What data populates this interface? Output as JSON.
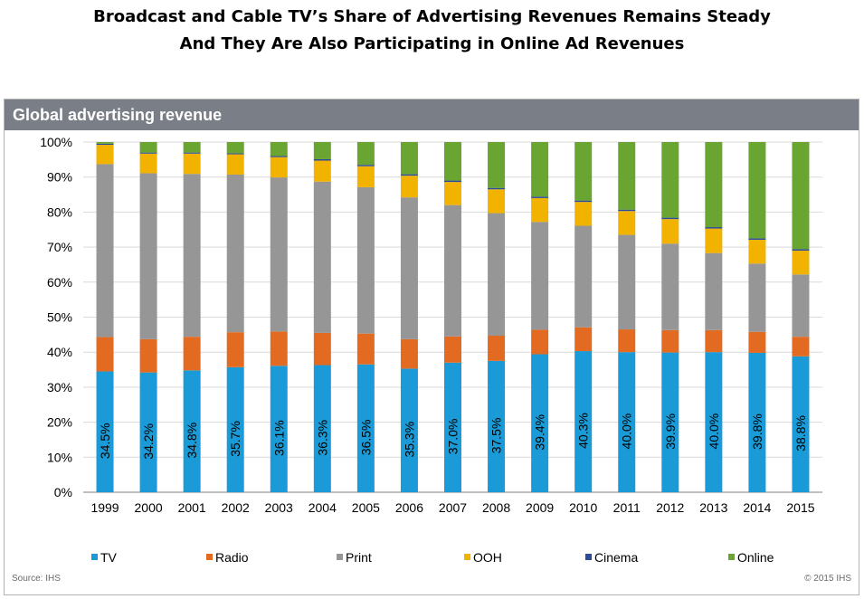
{
  "title_line1": "Broadcast and Cable TV’s Share of Advertising Revenues Remains Steady",
  "title_line2": "And They Are Also Participating in Online Ad Revenues",
  "panel_title": "Global advertising revenue",
  "source": "Source: IHS",
  "copyright": "© 2015 IHS",
  "colors": {
    "TV": "#1a9ad6",
    "Radio": "#e36b21",
    "Print": "#969696",
    "OOH": "#f2b200",
    "Cinema": "#2b4c9b",
    "Online": "#6aa431"
  },
  "chart_data": {
    "type": "bar",
    "stacked": true,
    "categories": [
      "1999",
      "2000",
      "2001",
      "2002",
      "2003",
      "2004",
      "2005",
      "2006",
      "2007",
      "2008",
      "2009",
      "2010",
      "2011",
      "2012",
      "2013",
      "2014",
      "2015"
    ],
    "ylim": [
      0,
      100
    ],
    "yticks": [
      "0%",
      "10%",
      "20%",
      "30%",
      "40%",
      "50%",
      "60%",
      "70%",
      "80%",
      "90%",
      "100%"
    ],
    "grid": true,
    "legend_position": "bottom",
    "series": [
      {
        "name": "TV",
        "values": [
          34.5,
          34.2,
          34.8,
          35.7,
          36.1,
          36.3,
          36.5,
          35.3,
          37.0,
          37.5,
          39.4,
          40.3,
          40.0,
          39.9,
          40.0,
          39.8,
          38.8
        ],
        "labels": [
          "34.5%",
          "34.2%",
          "34.8%",
          "35.7%",
          "36.1%",
          "36.3%",
          "36.5%",
          "35.3%",
          "37.0%",
          "37.5%",
          "39.4%",
          "40.3%",
          "40.0%",
          "39.9%",
          "40.0%",
          "39.8%",
          "38.8%"
        ]
      },
      {
        "name": "Radio",
        "values": [
          9.8,
          9.5,
          9.6,
          10.0,
          9.8,
          9.2,
          8.8,
          8.4,
          7.5,
          7.2,
          7.0,
          6.8,
          6.5,
          6.4,
          6.3,
          6.0,
          5.6
        ]
      },
      {
        "name": "Print",
        "values": [
          49.4,
          47.4,
          46.5,
          45.0,
          44.0,
          43.2,
          41.8,
          40.5,
          37.5,
          35.0,
          30.8,
          29.0,
          27.0,
          24.7,
          22.0,
          19.5,
          17.8
        ]
      },
      {
        "name": "OOH",
        "values": [
          5.5,
          5.6,
          5.8,
          5.8,
          5.8,
          6.0,
          6.0,
          6.2,
          6.6,
          6.8,
          6.8,
          6.8,
          6.8,
          7.0,
          7.0,
          6.8,
          6.8
        ]
      },
      {
        "name": "Cinema",
        "values": [
          0.3,
          0.3,
          0.3,
          0.3,
          0.3,
          0.4,
          0.4,
          0.4,
          0.4,
          0.4,
          0.4,
          0.4,
          0.4,
          0.4,
          0.4,
          0.4,
          0.4
        ]
      },
      {
        "name": "Online",
        "values": [
          0.5,
          3.0,
          3.0,
          3.2,
          4.0,
          4.9,
          6.5,
          9.2,
          11.0,
          13.1,
          15.6,
          16.7,
          19.3,
          21.6,
          24.3,
          27.5,
          30.6
        ]
      }
    ]
  }
}
